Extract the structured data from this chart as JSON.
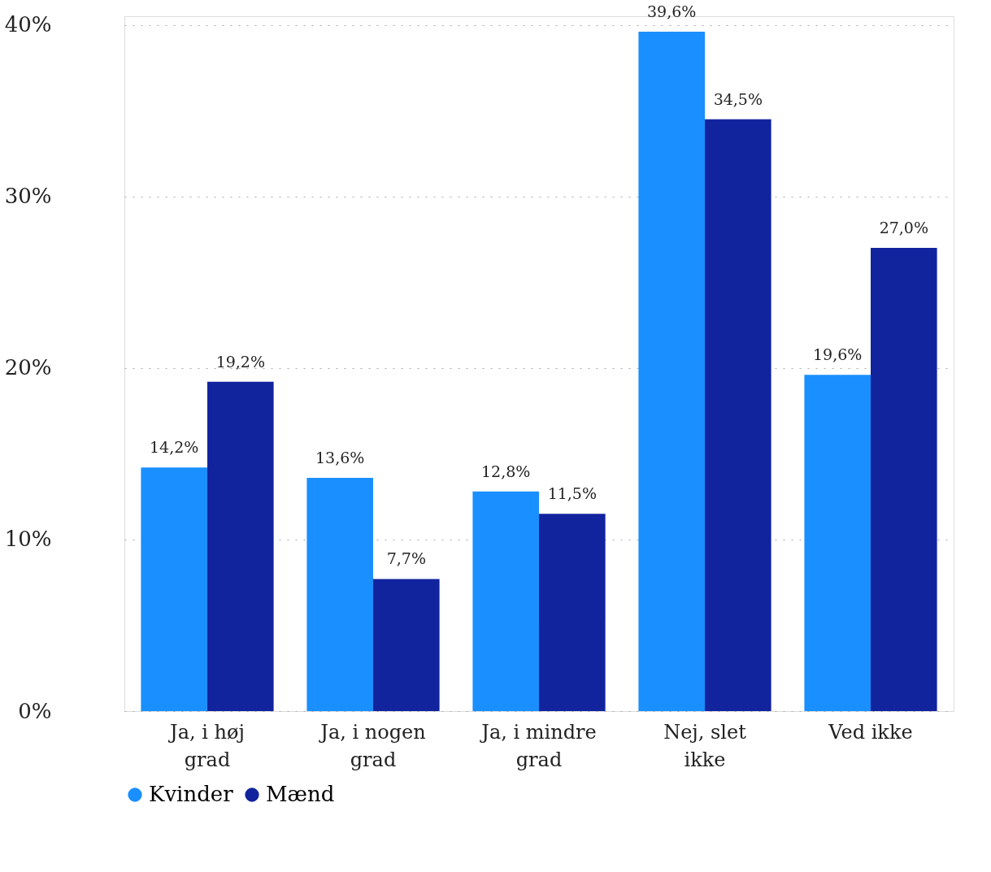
{
  "chart_data": {
    "type": "bar",
    "categories": [
      "Ja, i høj grad",
      "Ja, i nogen grad",
      "Ja, i mindre grad",
      "Nej, slet ikke",
      "Ved ikke"
    ],
    "series": [
      {
        "name": "Kvinder",
        "color": "#1a8fff",
        "values": [
          14.2,
          13.6,
          12.8,
          39.6,
          19.6
        ],
        "value_labels": [
          "14,2%",
          "13,6%",
          "12,8%",
          "39,6%",
          "19,6%"
        ]
      },
      {
        "name": "Mænd",
        "color": "#12239e",
        "values": [
          19.2,
          7.7,
          11.5,
          34.5,
          27.0
        ],
        "value_labels": [
          "19,2%",
          "7,7%",
          "11,5%",
          "34,5%",
          "27,0%"
        ]
      }
    ],
    "ylim": [
      0,
      40.5
    ],
    "yticks": [
      {
        "value": 0,
        "label": "0%"
      },
      {
        "value": 10,
        "label": "10%"
      },
      {
        "value": 20,
        "label": "20%"
      },
      {
        "value": 30,
        "label": "30%"
      },
      {
        "value": 40,
        "label": "40%"
      }
    ],
    "grid": "y",
    "legend": "bottom",
    "marker": "circle"
  }
}
